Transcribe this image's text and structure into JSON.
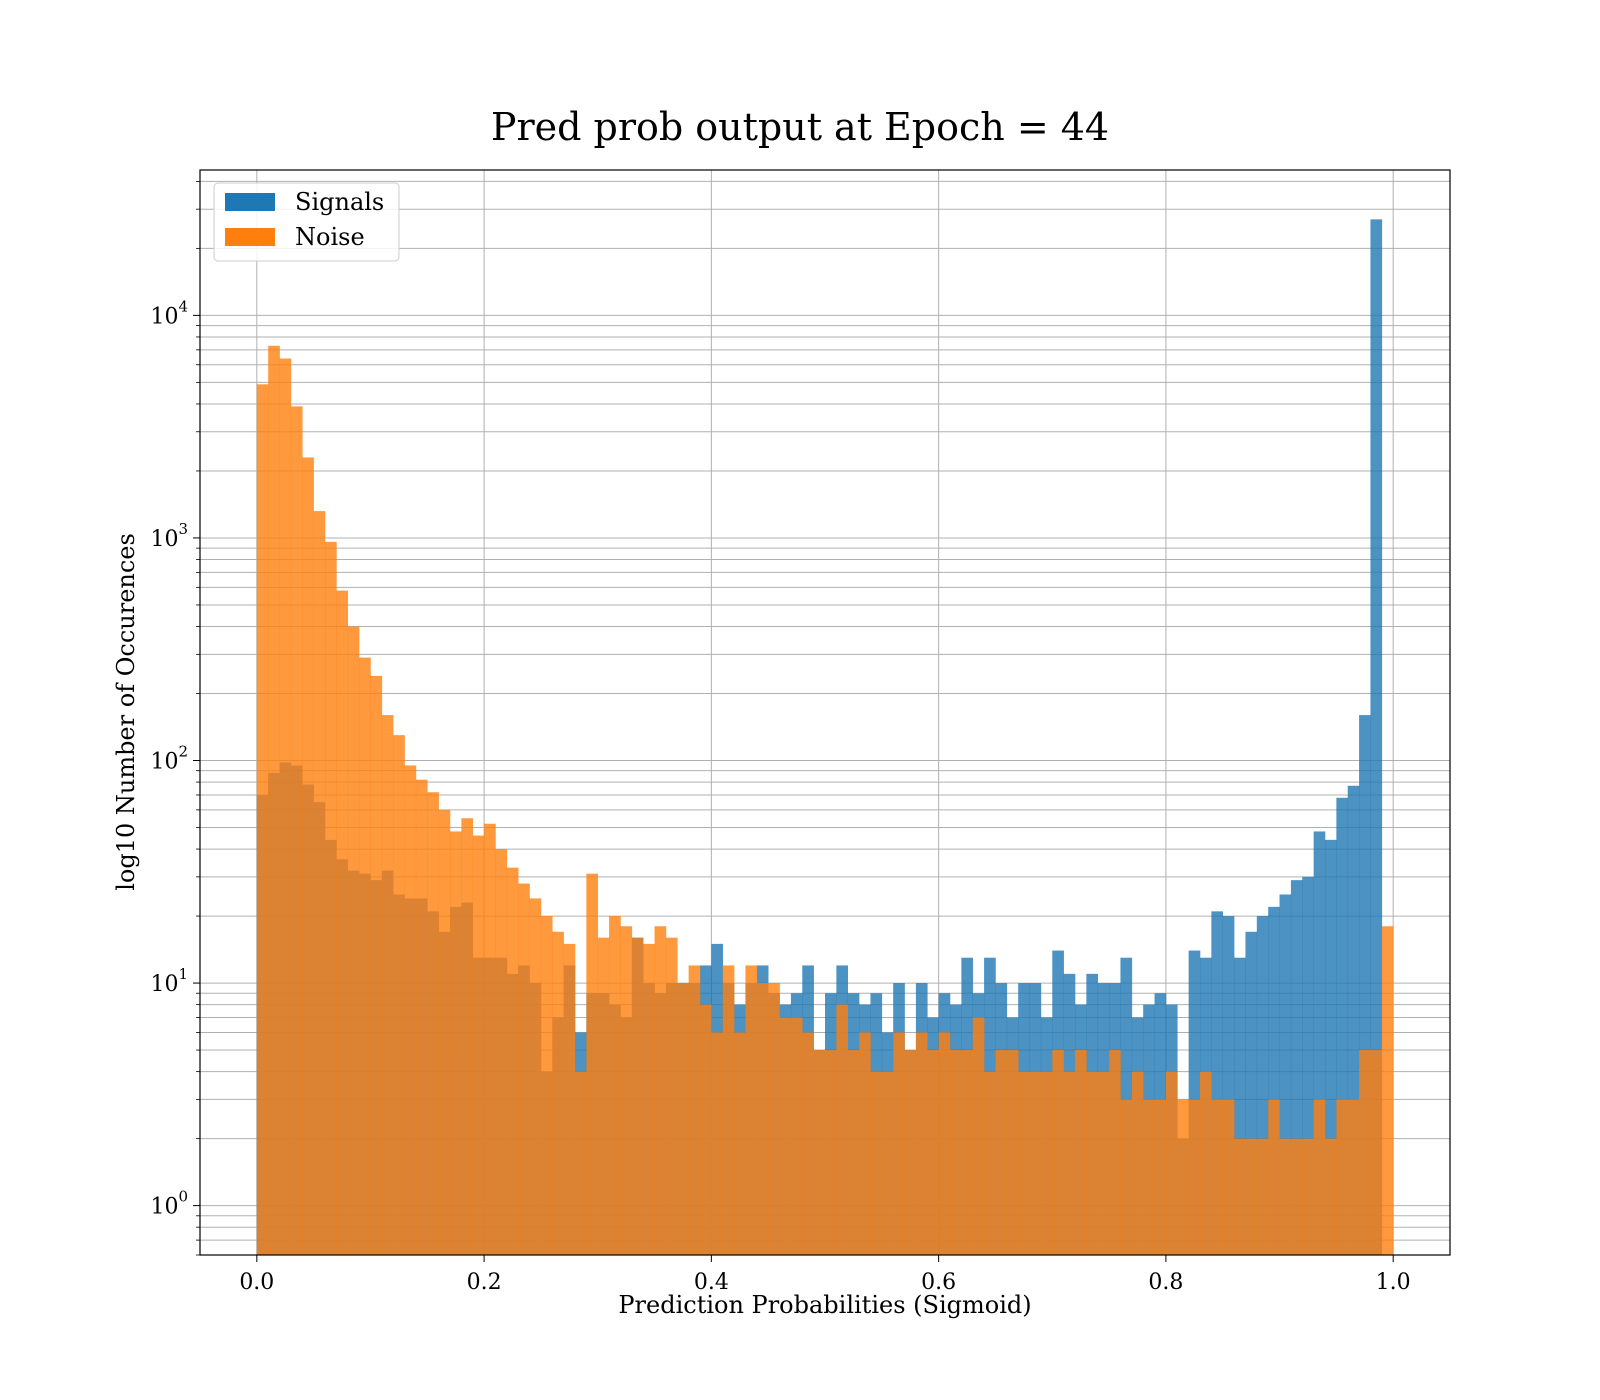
{
  "chart_data": {
    "type": "bar",
    "title": "Pred prob output at Epoch = 44",
    "xlabel": "Prediction Probabilities (Sigmoid)",
    "ylabel": "log10 Number of Occurences",
    "yscale": "log",
    "xlim": [
      -0.05,
      1.05
    ],
    "ylim": [
      0.6,
      45000
    ],
    "grid": true,
    "legend_position": "top-left",
    "bin_start": 0.0,
    "bin_width": 0.01,
    "x_ticks": [
      "0.0",
      "0.2",
      "0.4",
      "0.6",
      "0.8",
      "1.0"
    ],
    "y_ticks": [
      {
        "value": 1,
        "base": "10",
        "exp": "0"
      },
      {
        "value": 10,
        "base": "10",
        "exp": "1"
      },
      {
        "value": 100,
        "base": "10",
        "exp": "2"
      },
      {
        "value": 1000,
        "base": "10",
        "exp": "3"
      },
      {
        "value": 10000,
        "base": "10",
        "exp": "4"
      }
    ],
    "series": [
      {
        "name": "Signals",
        "color": "#1f77b4",
        "values": [
          70,
          88,
          98,
          95,
          78,
          65,
          44,
          36,
          32,
          31,
          29,
          32,
          25,
          24,
          24,
          21,
          17,
          22,
          23,
          13,
          13,
          13,
          11,
          12,
          10,
          4,
          7,
          12,
          6,
          9,
          9,
          8,
          7,
          16,
          10,
          9,
          10,
          10,
          10,
          12,
          15,
          10,
          8,
          10,
          12,
          9,
          8,
          9,
          12,
          5,
          9,
          12,
          9,
          8,
          9,
          6,
          10,
          5,
          10,
          7,
          9,
          8,
          13,
          9,
          13,
          10,
          7,
          10,
          10,
          7,
          14,
          11,
          8,
          11,
          10,
          10,
          13,
          7,
          8,
          9,
          8,
          2,
          14,
          13,
          21,
          20,
          13,
          17,
          20,
          22,
          25,
          29,
          30,
          48,
          44,
          68,
          77,
          160,
          27000,
          0
        ],
        "alpha": 0.8
      },
      {
        "name": "Noise",
        "color": "#ff7f0e",
        "values": [
          4900,
          7300,
          6400,
          3900,
          2300,
          1320,
          960,
          580,
          400,
          290,
          240,
          160,
          130,
          95,
          82,
          72,
          60,
          48,
          55,
          46,
          52,
          40,
          33,
          28,
          24,
          20,
          17,
          15,
          4,
          31,
          16,
          20,
          18,
          16,
          15,
          18,
          16,
          10,
          12,
          8,
          6,
          12,
          6,
          12,
          10,
          10,
          7,
          7,
          6,
          5,
          5,
          8,
          5,
          6,
          4,
          4,
          6,
          5,
          6,
          5,
          6,
          5,
          5,
          7,
          4,
          5,
          5,
          4,
          4,
          4,
          5,
          4,
          5,
          4,
          4,
          5,
          3,
          4,
          3,
          3,
          4,
          3,
          3,
          4,
          3,
          3,
          2,
          2,
          2,
          3,
          2,
          2,
          2,
          3,
          2,
          3,
          3,
          5,
          5,
          18
        ]
      }
    ]
  }
}
